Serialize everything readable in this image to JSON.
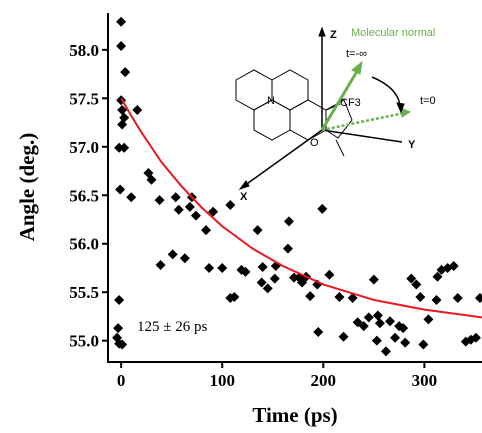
{
  "chart_data": {
    "type": "scatter",
    "xlabel": "Time (ps)",
    "ylabel": "Angle (deg.)",
    "annotation": "125 ± 26 ps",
    "xlim": [
      -13,
      357
    ],
    "ylim": [
      54.78,
      58.38
    ],
    "xticks": [
      0,
      100,
      200,
      300
    ],
    "yticks": [
      {
        "value": 55,
        "label": "55.0"
      },
      55.5,
      {
        "value": 56,
        "label": "56.0"
      },
      56.5,
      {
        "value": 57,
        "label": "57.0"
      },
      57.5,
      {
        "value": 58,
        "label": "58.0"
      }
    ],
    "series": [
      {
        "color": "#000000",
        "x": [
          0,
          0,
          4,
          0,
          1,
          3,
          1,
          -2,
          3,
          16,
          -1,
          10,
          27,
          30,
          38,
          54,
          70,
          57,
          68,
          74,
          91,
          84,
          108,
          39,
          51,
          63,
          87,
          100,
          119,
          123,
          108,
          112,
          135,
          140,
          153,
          139,
          145,
          152,
          165,
          166,
          171,
          176,
          183,
          179,
          187,
          194,
          199,
          206,
          195,
          216,
          220,
          229,
          234,
          240,
          245,
          250,
          254,
          256,
          253,
          262,
          266,
          271,
          275,
          279,
          281,
          287,
          292,
          296,
          299,
          304,
          312,
          317,
          323,
          329,
          333,
          313,
          341,
          346,
          351,
          355,
          -2,
          -3,
          -4,
          -2,
          1
        ],
        "values": [
          58.29,
          58.04,
          57.77,
          57.48,
          57.38,
          57.3,
          57.23,
          56.99,
          56.99,
          57.38,
          56.56,
          56.48,
          56.73,
          56.66,
          56.45,
          56.48,
          56.48,
          56.35,
          56.38,
          56.29,
          56.33,
          56.14,
          56.4,
          55.78,
          55.89,
          55.85,
          55.75,
          55.75,
          55.73,
          55.71,
          55.44,
          55.45,
          56.14,
          55.76,
          55.77,
          55.6,
          55.54,
          55.64,
          55.95,
          56.23,
          55.65,
          55.65,
          55.66,
          55.6,
          55.46,
          55.58,
          56.36,
          55.68,
          55.09,
          55.45,
          55.04,
          55.44,
          55.19,
          55.15,
          55.24,
          55.63,
          55.26,
          55.18,
          55.0,
          54.89,
          55.2,
          55.03,
          55.15,
          55.13,
          54.98,
          55.64,
          55.58,
          55.45,
          54.96,
          55.22,
          55.42,
          55.73,
          55.75,
          55.77,
          55.44,
          55.66,
          54.99,
          55.01,
          55.03,
          55.44,
          55.42,
          55.13,
          55.03,
          54.97,
          54.96
        ]
      }
    ],
    "fit": {
      "color": "#e8191e",
      "x": [
        0,
        10,
        20,
        40,
        60,
        80,
        100,
        130,
        160,
        200,
        250,
        300,
        357
      ],
      "values": [
        57.5,
        57.32,
        57.15,
        56.84,
        56.59,
        56.37,
        56.18,
        55.95,
        55.77,
        55.58,
        55.42,
        55.32,
        55.24
      ]
    },
    "inset": {
      "normal_label": "Molecular normal",
      "t_start": "t=-∞",
      "t_zero": "t=0",
      "z": "Z",
      "y": "Y",
      "x": "X",
      "n": "N",
      "cf3": "CF3",
      "o": "O"
    }
  }
}
